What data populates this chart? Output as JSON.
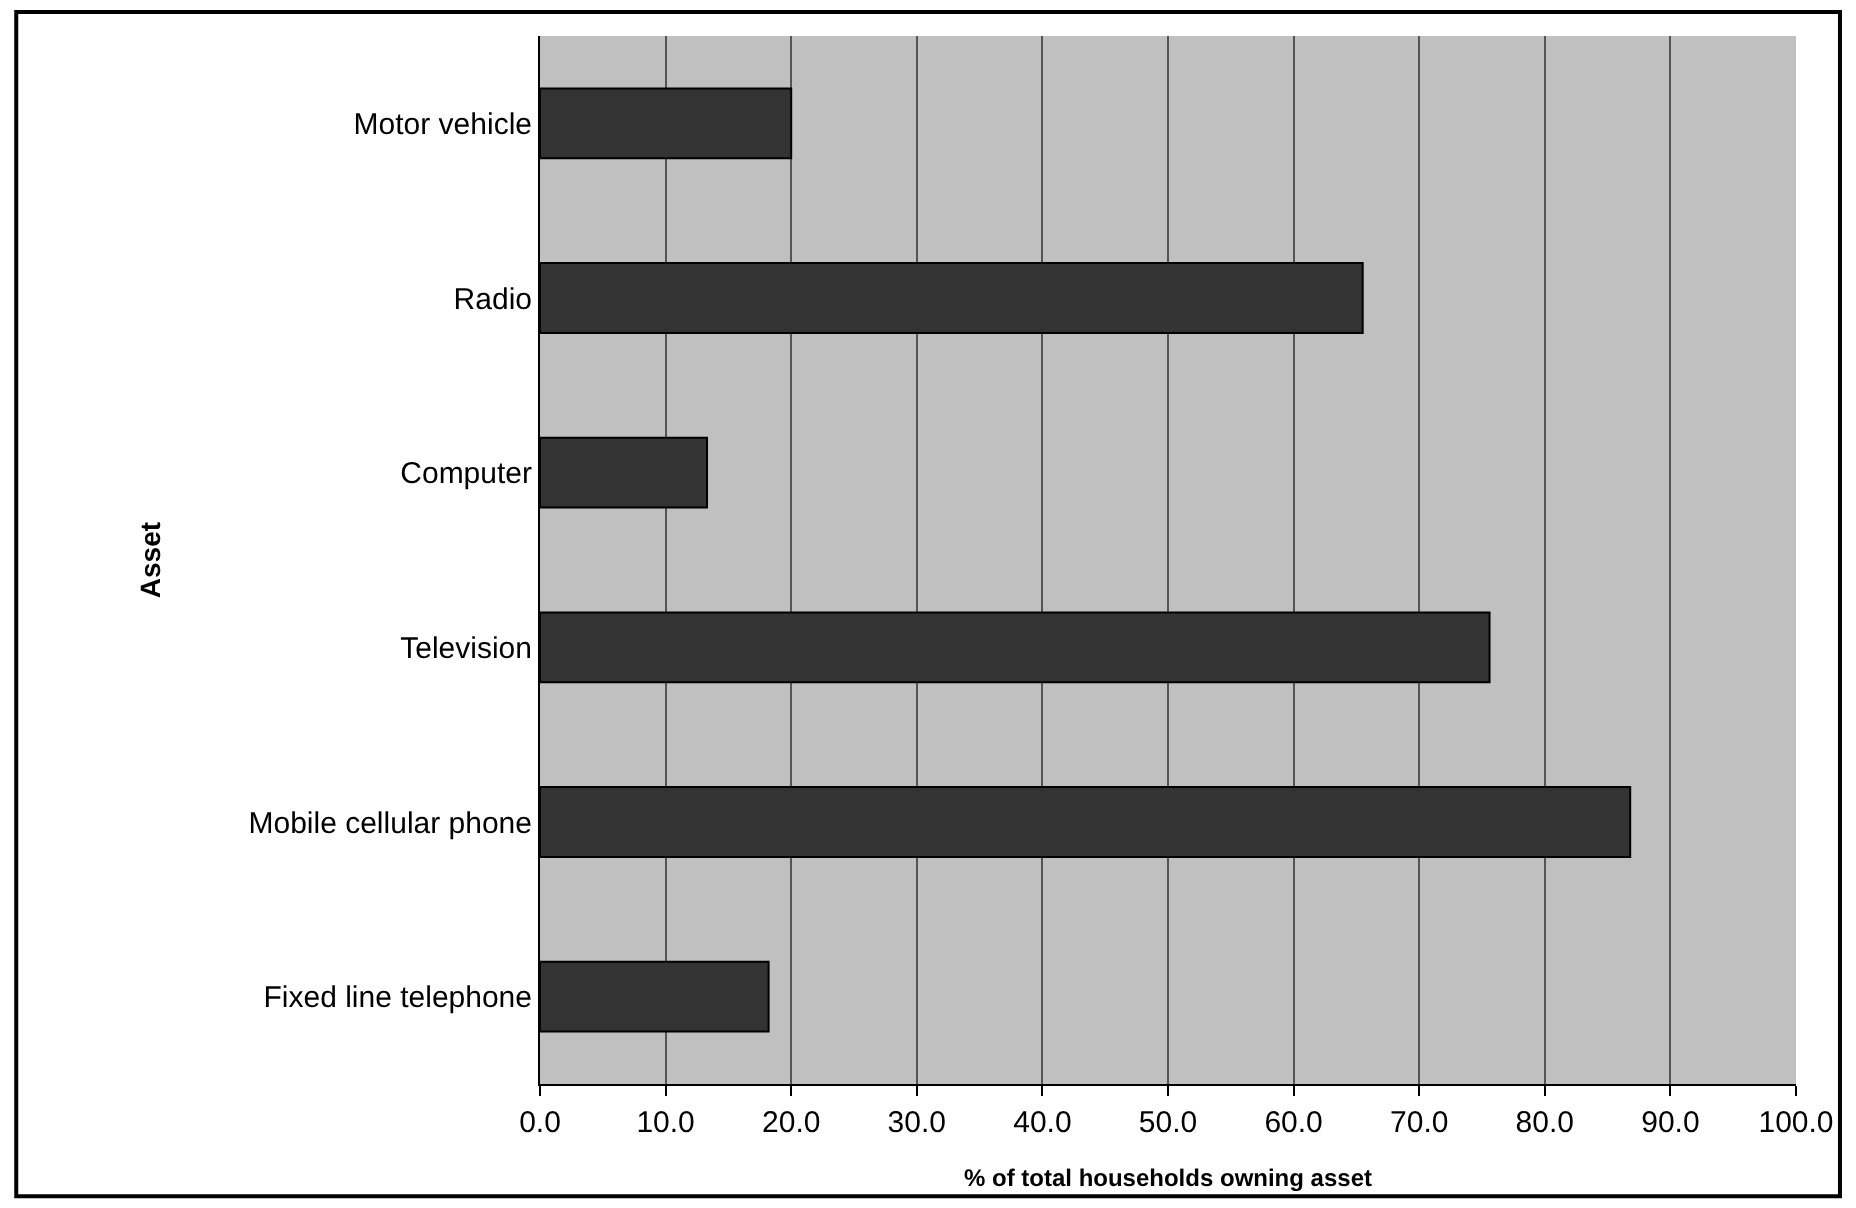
{
  "chart_data": {
    "type": "bar",
    "orientation": "horizontal",
    "xlabel": "% of total households owning asset",
    "ylabel": "Asset",
    "categories": [
      "Motor vehicle",
      "Radio",
      "Computer",
      "Television",
      "Mobile cellular phone",
      "Fixed line telephone"
    ],
    "values": [
      20.0,
      65.5,
      13.3,
      75.6,
      86.8,
      18.2
    ],
    "color": "#333333",
    "xlim": [
      0,
      100
    ],
    "xticks": [
      {
        "value": 0,
        "label": "0.0"
      },
      {
        "value": 10,
        "label": "10.0"
      },
      {
        "value": 20,
        "label": "20.0"
      },
      {
        "value": 30,
        "label": "30.0"
      },
      {
        "value": 40,
        "label": "40.0"
      },
      {
        "value": 50,
        "label": "50.0"
      },
      {
        "value": 60,
        "label": "60.0"
      },
      {
        "value": 70,
        "label": "70.0"
      },
      {
        "value": 80,
        "label": "80.0"
      },
      {
        "value": 90,
        "label": "90.0"
      },
      {
        "value": 100,
        "label": "100.0"
      }
    ],
    "grid": "x"
  }
}
